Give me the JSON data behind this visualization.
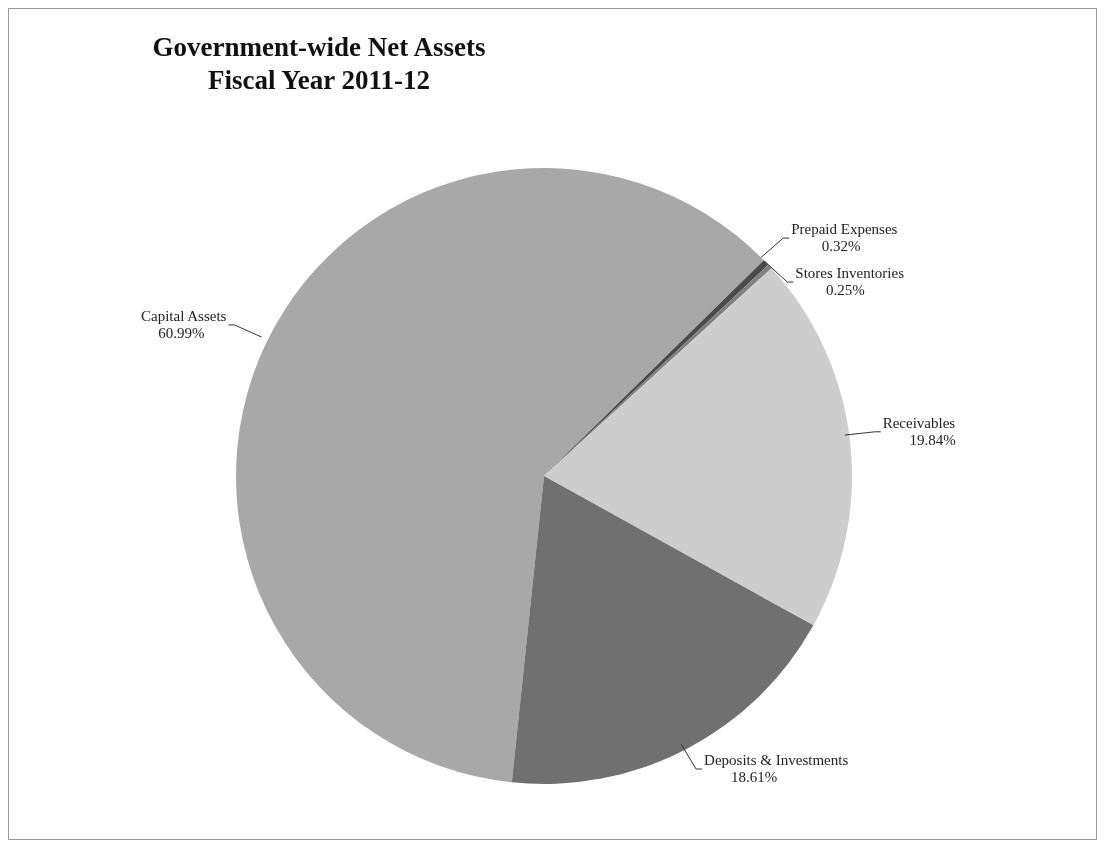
{
  "chart_data": {
    "type": "pie",
    "title": "Government-wide Net Assets\nFiscal Year 2011-12",
    "categories": [
      "Capital Assets",
      "Prepaid Expenses",
      "Stores Inventories",
      "Receivables",
      "Deposits & Investments"
    ],
    "values": [
      60.99,
      0.32,
      0.25,
      19.84,
      18.61
    ],
    "value_labels": [
      "60.99%",
      "0.32%",
      "0.25%",
      "19.84%",
      "18.61%"
    ],
    "colors": [
      "#a8a8a8",
      "#4a4a4a",
      "#808080",
      "#cdcdcd",
      "#707070"
    ],
    "legend": false
  }
}
